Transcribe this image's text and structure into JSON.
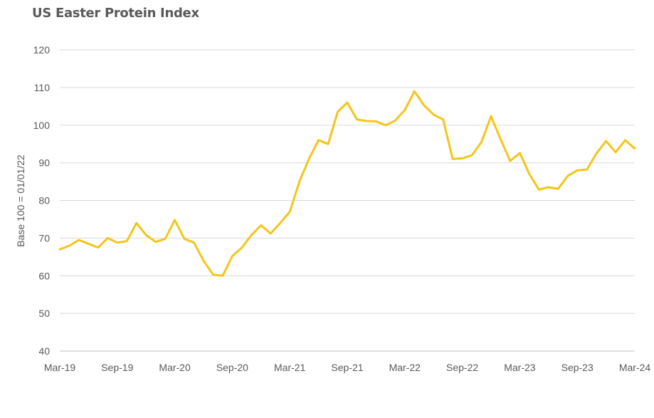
{
  "chart_data": {
    "type": "line",
    "title": "US Easter Protein Index",
    "xlabel": "",
    "ylabel": "Base 100 = 01/01/22",
    "ylim": [
      40,
      120
    ],
    "yticks": [
      40,
      50,
      60,
      70,
      80,
      90,
      100,
      110,
      120
    ],
    "xticks": [
      "Mar-19",
      "Sep-19",
      "Mar-20",
      "Sep-20",
      "Mar-21",
      "Sep-21",
      "Mar-22",
      "Sep-22",
      "Mar-23",
      "Sep-23",
      "Mar-24"
    ],
    "grid": true,
    "legend": "none",
    "color": "#f5c518",
    "series": [
      {
        "values": [
          67,
          68,
          69.5,
          68.5,
          67.5,
          70,
          68.8,
          69.2,
          74,
          70.8,
          69,
          69.8,
          74.8,
          69.8,
          68.8,
          64,
          60.3,
          60,
          65.2,
          67.5,
          70.8,
          73.4,
          71.2,
          74,
          77,
          85,
          91,
          96,
          95,
          103.5,
          106,
          101.5,
          101.1,
          101,
          100,
          101.2,
          104,
          109,
          105.3,
          102.8,
          101.5,
          91,
          91.2,
          92,
          95.5,
          102.4,
          96.2,
          90.5,
          92.6,
          87,
          82.9,
          83.5,
          83.1,
          86.5,
          88,
          88.2,
          92.5,
          95.8,
          92.8,
          96,
          93.8
        ]
      }
    ]
  }
}
